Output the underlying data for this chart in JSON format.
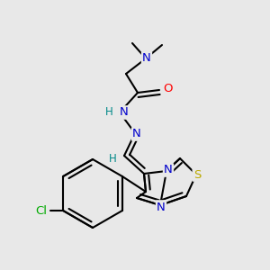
{
  "bg_color": "#e8e8e8",
  "bond_color": "#000000",
  "atom_colors": {
    "N": "#0000cc",
    "O": "#ff0000",
    "S": "#bbaa00",
    "Cl": "#00aa00",
    "H": "#008888",
    "C": "#000000"
  },
  "lw": 1.5,
  "fs": 9.5,
  "fs_small": 8.5
}
